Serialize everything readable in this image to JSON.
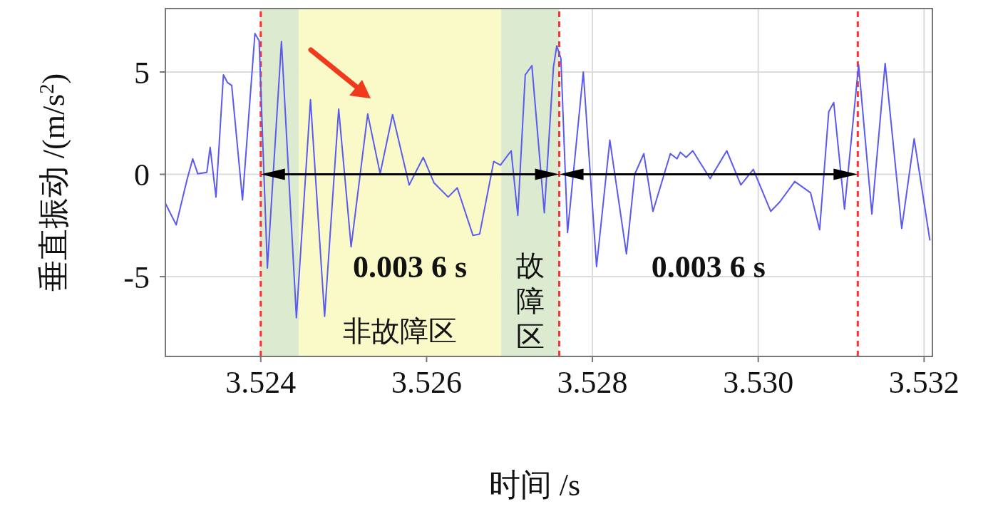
{
  "chart_data": {
    "type": "line",
    "xlabel": "时间 /s",
    "ylabel": "垂直振动 /(m/s$^{2}$)",
    "x": [
      3.52285,
      3.52298,
      3.52311,
      3.52318,
      3.52324,
      3.52335,
      3.52339,
      3.52346,
      3.52355,
      3.5236,
      3.52365,
      3.52378,
      3.52393,
      3.52398,
      3.52408,
      3.52425,
      3.52443,
      3.5246,
      3.52477,
      3.52494,
      3.52509,
      3.52529,
      3.52544,
      3.52559,
      3.52579,
      3.52596,
      3.52609,
      3.52626,
      3.52637,
      3.52656,
      3.52664,
      3.52681,
      3.52689,
      3.52702,
      3.5271,
      3.52719,
      3.52727,
      3.52742,
      3.52753,
      3.52757,
      3.52762,
      3.5277,
      3.52789,
      3.52805,
      3.52821,
      3.52841,
      3.52851,
      3.52862,
      3.52873,
      3.52894,
      3.52902,
      3.52906,
      3.52913,
      3.52921,
      3.52929,
      3.52942,
      3.52962,
      3.52979,
      3.52994,
      3.53015,
      3.53026,
      3.53044,
      3.53063,
      3.53074,
      3.53085,
      3.53091,
      3.53104,
      3.53121,
      3.53137,
      3.53153,
      3.53173,
      3.53188,
      3.53207
    ],
    "series": [
      {
        "color": "#5a5af0",
        "values": [
          -1.42,
          -2.47,
          -0.28,
          0.76,
          0.03,
          0.1,
          1.32,
          -1.11,
          4.86,
          4.48,
          4.34,
          -1.25,
          6.88,
          6.53,
          -4.58,
          6.49,
          -7.01,
          3.65,
          -6.94,
          3.19,
          -3.54,
          2.95,
          0.03,
          2.92,
          -0.52,
          0.83,
          -0.42,
          -1.11,
          -0.66,
          -2.99,
          -2.92,
          0.63,
          0.45,
          1.15,
          -2.01,
          4.86,
          5.31,
          -1.88,
          5.24,
          6.28,
          5.66,
          -2.85,
          5.0,
          -4.51,
          1.67,
          -3.89,
          0.0,
          1.01,
          -1.81,
          1.01,
          0.76,
          1.08,
          0.83,
          1.15,
          0.63,
          -0.21,
          1.15,
          -0.52,
          0.24,
          -1.81,
          -1.35,
          -0.35,
          -0.9,
          -2.71,
          3.06,
          3.51,
          -1.7,
          5.35,
          -1.94,
          5.42,
          -2.64,
          1.74,
          -3.23
        ]
      }
    ],
    "xlim": [
      3.52285,
      3.5321
    ],
    "xticks": [
      3.524,
      3.526,
      3.528,
      {
        "value": 3.53,
        "label": "3.530"
      },
      3.532
    ],
    "ylim": [
      -8.9,
      8.1
    ],
    "yticks": [
      -5,
      0,
      5
    ],
    "grid": true,
    "marker": "none",
    "line_style": "solid",
    "ref_lines": [
      {
        "axis": "x",
        "value": 3.524,
        "color": "#ff3030",
        "line_style": "dashed"
      },
      {
        "axis": "x",
        "value": 3.5276,
        "color": "#ff3030",
        "line_style": "dashed"
      },
      {
        "axis": "x",
        "value": 3.5312,
        "color": "#ff3030",
        "line_style": "dashed"
      }
    ],
    "bands": [
      {
        "axis": "x",
        "from": 3.524,
        "to": 3.52446,
        "color": "#dcebd0"
      },
      {
        "axis": "x",
        "from": 3.52446,
        "to": 3.5269,
        "label": "非故障区",
        "color": "#fafac8"
      },
      {
        "axis": "x",
        "from": 3.5269,
        "to": 3.5276,
        "label": "故障区",
        "color": "#dcebd0"
      }
    ],
    "annotations": [
      "0.003 6 s",
      "0.003 6 s"
    ]
  }
}
